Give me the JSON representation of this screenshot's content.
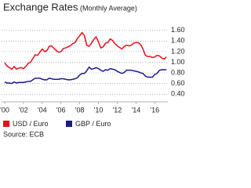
{
  "chart_data": {
    "type": "line",
    "title": "Exchange Rates",
    "subtitle": "(Monthly Average)",
    "source": "Source: ECB",
    "x": [
      2000,
      2000.25,
      2000.5,
      2000.75,
      2001,
      2001.25,
      2001.5,
      2001.75,
      2002,
      2002.25,
      2002.5,
      2002.75,
      2003,
      2003.25,
      2003.5,
      2003.75,
      2004,
      2004.25,
      2004.5,
      2004.75,
      2005,
      2005.25,
      2005.5,
      2005.75,
      2006,
      2006.25,
      2006.5,
      2006.75,
      2007,
      2007.25,
      2007.5,
      2007.75,
      2008,
      2008.25,
      2008.5,
      2008.75,
      2009,
      2009.25,
      2009.5,
      2009.75,
      2010,
      2010.25,
      2010.5,
      2010.75,
      2011,
      2011.25,
      2011.5,
      2011.75,
      2012,
      2012.25,
      2012.5,
      2012.75,
      2013,
      2013.25,
      2013.5,
      2013.75,
      2014,
      2014.25,
      2014.5,
      2014.75,
      2015,
      2015.25,
      2015.5,
      2015.75,
      2016,
      2016.25,
      2016.5,
      2016.75,
      2017,
      2017.25
    ],
    "series": [
      {
        "name": "USD / Euro",
        "color": "#e8101a",
        "values": [
          0.99,
          0.93,
          0.9,
          0.87,
          0.92,
          0.87,
          0.89,
          0.9,
          0.88,
          0.92,
          0.98,
          1.0,
          1.07,
          1.14,
          1.13,
          1.19,
          1.25,
          1.2,
          1.22,
          1.3,
          1.31,
          1.26,
          1.22,
          1.19,
          1.2,
          1.26,
          1.27,
          1.29,
          1.31,
          1.35,
          1.37,
          1.45,
          1.5,
          1.56,
          1.5,
          1.32,
          1.3,
          1.36,
          1.43,
          1.48,
          1.38,
          1.27,
          1.29,
          1.36,
          1.37,
          1.44,
          1.41,
          1.35,
          1.31,
          1.28,
          1.25,
          1.3,
          1.32,
          1.31,
          1.32,
          1.36,
          1.37,
          1.37,
          1.33,
          1.25,
          1.13,
          1.11,
          1.11,
          1.09,
          1.1,
          1.13,
          1.12,
          1.08,
          1.06,
          1.1
        ]
      },
      {
        "name": "GBP / Euro",
        "color": "#1a1a8c",
        "values": [
          0.63,
          0.61,
          0.61,
          0.6,
          0.63,
          0.61,
          0.62,
          0.62,
          0.62,
          0.63,
          0.64,
          0.64,
          0.67,
          0.7,
          0.7,
          0.7,
          0.68,
          0.67,
          0.67,
          0.7,
          0.69,
          0.68,
          0.68,
          0.68,
          0.69,
          0.69,
          0.68,
          0.67,
          0.67,
          0.68,
          0.69,
          0.71,
          0.76,
          0.79,
          0.79,
          0.84,
          0.91,
          0.87,
          0.88,
          0.9,
          0.88,
          0.85,
          0.83,
          0.86,
          0.85,
          0.88,
          0.87,
          0.86,
          0.83,
          0.81,
          0.79,
          0.81,
          0.85,
          0.85,
          0.85,
          0.84,
          0.83,
          0.82,
          0.8,
          0.79,
          0.74,
          0.72,
          0.72,
          0.72,
          0.77,
          0.79,
          0.85,
          0.86,
          0.86,
          0.86
        ]
      }
    ],
    "xlim": [
      2000,
      2017.4
    ],
    "xticks": [
      {
        "value": 2000,
        "label": "'00"
      },
      {
        "value": 2002,
        "label": "'02"
      },
      {
        "value": 2004,
        "label": "'04"
      },
      {
        "value": 2006,
        "label": "'06"
      },
      {
        "value": 2008,
        "label": "'08"
      },
      {
        "value": 2010,
        "label": "'10"
      },
      {
        "value": 2012,
        "label": "'12"
      },
      {
        "value": 2014,
        "label": "'14"
      },
      {
        "value": 2016,
        "label": "'16"
      }
    ],
    "ylim": [
      0.3,
      1.7
    ],
    "yticks": [
      {
        "value": 0.4,
        "label": "0.40"
      },
      {
        "value": 0.6,
        "label": "0.60"
      },
      {
        "value": 0.8,
        "label": "0.80"
      },
      {
        "value": 1.0,
        "label": "1.00"
      },
      {
        "value": 1.2,
        "label": "1.20"
      },
      {
        "value": 1.4,
        "label": "1.40"
      },
      {
        "value": 1.6,
        "label": "1.60"
      }
    ],
    "grid": true
  }
}
